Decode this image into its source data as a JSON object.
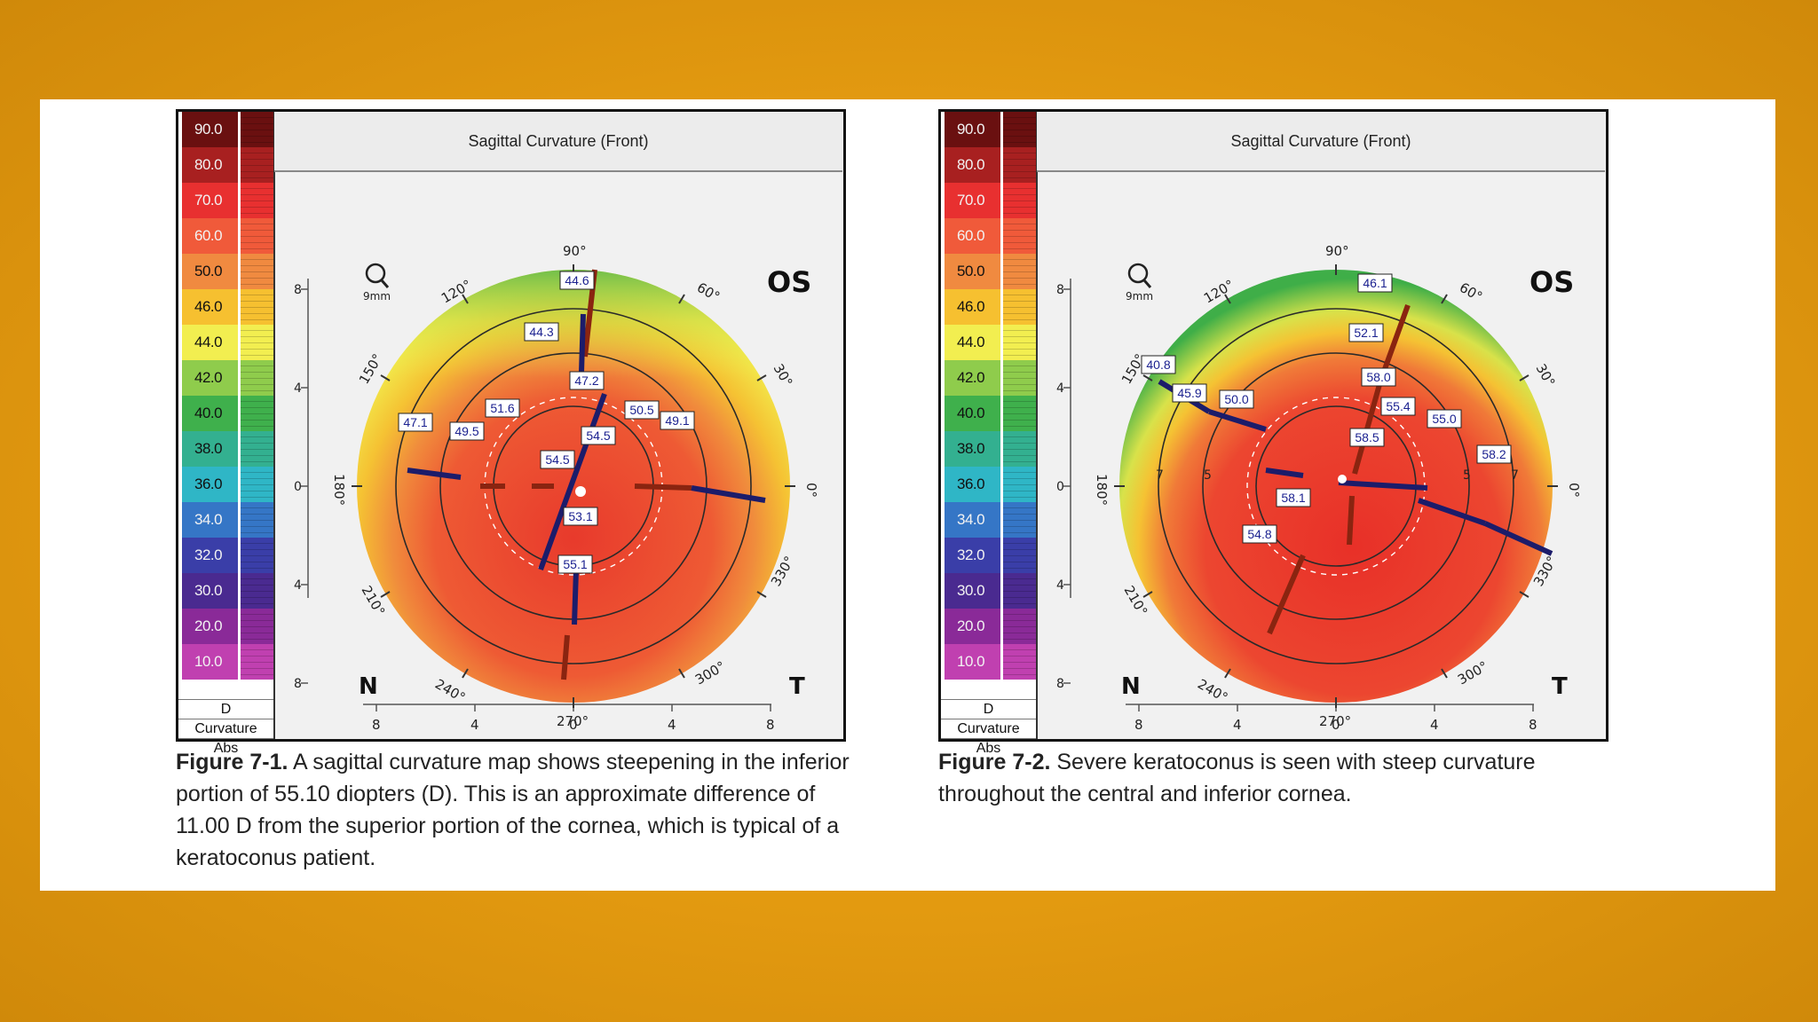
{
  "scale_labels": [
    "90.0",
    "80.0",
    "70.0",
    "60.0",
    "50.0",
    "46.0",
    "44.0",
    "42.0",
    "40.0",
    "38.0",
    "36.0",
    "34.0",
    "32.0",
    "30.0",
    "20.0",
    "10.0"
  ],
  "scale_colors": [
    "#6a1010",
    "#a82020",
    "#e83030",
    "#f05a3a",
    "#f08a40",
    "#f6c030",
    "#f2ee50",
    "#8fcc4c",
    "#3fb04c",
    "#33b090",
    "#2fb6c6",
    "#3576c6",
    "#3a3ea8",
    "#4a2a90",
    "#8a2a98",
    "#c040b0"
  ],
  "scale_unit_label": "D",
  "scale_type_label": "Curvature",
  "scale_mode_label": "Abs",
  "figures": [
    {
      "title": "Sagittal Curvature (Front)",
      "eye": "OS",
      "nasal": "N",
      "temporal": "T",
      "zoom_label": "9mm",
      "angle_labels": [
        "90°",
        "60°",
        "30°",
        "0°",
        "330°",
        "300°",
        "270°",
        "240°",
        "210°",
        "180°",
        "150°",
        "120°"
      ],
      "y_ticks": [
        "8",
        "4",
        "0",
        "4",
        "8"
      ],
      "x_ticks": [
        "8",
        "4",
        "0",
        "4",
        "8"
      ],
      "value_labels": [
        "44.6",
        "44.3",
        "47.2",
        "51.6",
        "50.5",
        "49.1",
        "47.1",
        "49.5",
        "54.5",
        "54.5",
        "53.1",
        "55.1"
      ],
      "caption_label": "Figure 7-1.",
      "caption_text": " A sagittal curvature map shows steepening in the inferior portion of 55.10 diopters (D). This is an approximate difference of 11.00 D from the superior portion of the cornea, which is typical of a keratoconus patient."
    },
    {
      "title": "Sagittal Curvature (Front)",
      "eye": "OS",
      "nasal": "N",
      "temporal": "T",
      "zoom_label": "9mm",
      "angle_labels": [
        "90°",
        "60°",
        "30°",
        "0°",
        "330°",
        "300°",
        "270°",
        "240°",
        "210°",
        "180°",
        "150°",
        "120°"
      ],
      "y_ticks": [
        "8",
        "4",
        "0",
        "4",
        "8"
      ],
      "x_ticks": [
        "8",
        "4",
        "0",
        "4",
        "8"
      ],
      "value_labels": [
        "46.1",
        "52.1",
        "40.8",
        "45.9",
        "50.0",
        "58.0",
        "55.4",
        "58.5",
        "55.0",
        "58.2",
        "58.1",
        "54.8"
      ],
      "ring_labels": [
        "5",
        "5",
        "7",
        "7"
      ],
      "caption_label": "Figure 7-2.",
      "caption_text": " Severe keratoconus is seen with steep curvature throughout the central and inferior cornea."
    }
  ]
}
